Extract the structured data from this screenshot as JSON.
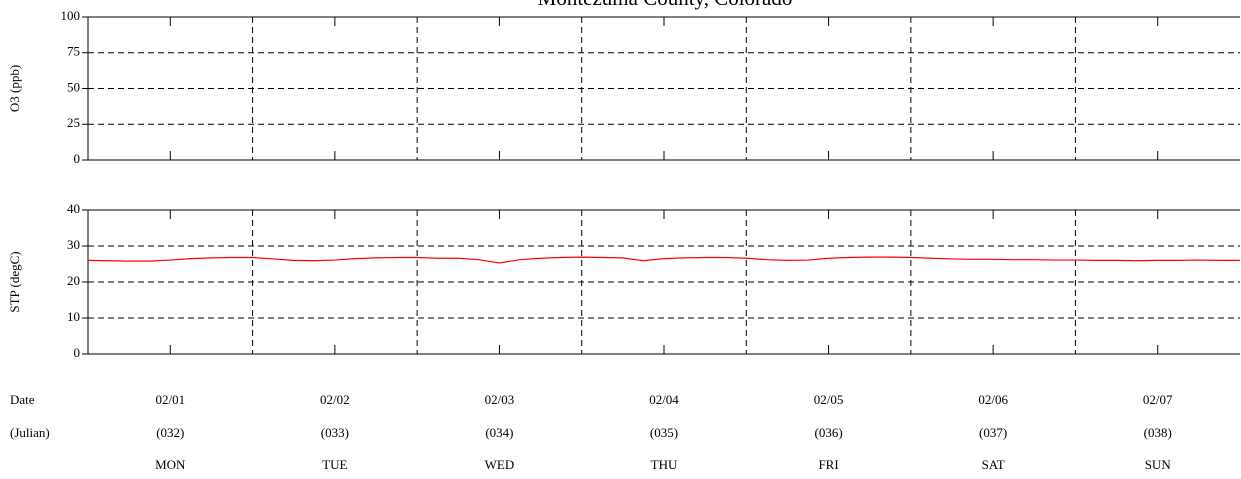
{
  "chart_data": {
    "type": "line",
    "title": "Montezuma County, Colorado",
    "row_labels": [
      "Date",
      "(Julian)"
    ],
    "categories": [
      "02/01",
      "02/02",
      "02/03",
      "02/04",
      "02/05",
      "02/06",
      "02/07"
    ],
    "julian": [
      "(032)",
      "(033)",
      "(034)",
      "(035)",
      "(036)",
      "(037)",
      "(038)"
    ],
    "weekdays": [
      "MON",
      "TUE",
      "WED",
      "THU",
      "FRI",
      "SAT",
      "SUN"
    ],
    "grid": true,
    "panels": [
      {
        "ylabel": "O3 (ppb)",
        "ylim": [
          0,
          100
        ],
        "yticks": [
          0,
          25,
          50,
          75,
          100
        ],
        "series": []
      },
      {
        "ylabel": "STP (degC)",
        "ylim": [
          0,
          40
        ],
        "yticks": [
          0,
          10,
          20,
          30,
          40
        ],
        "series": [
          {
            "name": "STP",
            "color": "#ff0000",
            "values": [
              26.0,
              25.9,
              25.8,
              25.8,
              26.1,
              26.5,
              26.7,
              26.8,
              26.8,
              26.4,
              26.0,
              25.9,
              26.1,
              26.5,
              26.7,
              26.8,
              26.8,
              26.6,
              26.6,
              26.2,
              25.3,
              26.2,
              26.6,
              26.8,
              26.9,
              26.8,
              26.7,
              25.9,
              26.5,
              26.7,
              26.8,
              26.8,
              26.6,
              26.2,
              26.0,
              26.1,
              26.6,
              26.8,
              26.9,
              26.9,
              26.8,
              26.6,
              26.4,
              26.3,
              26.3,
              26.2,
              26.2,
              26.1,
              26.1,
              26.0,
              26.0,
              25.9,
              26.0,
              26.0,
              26.1,
              26.0,
              26.0
            ]
          }
        ]
      }
    ]
  }
}
